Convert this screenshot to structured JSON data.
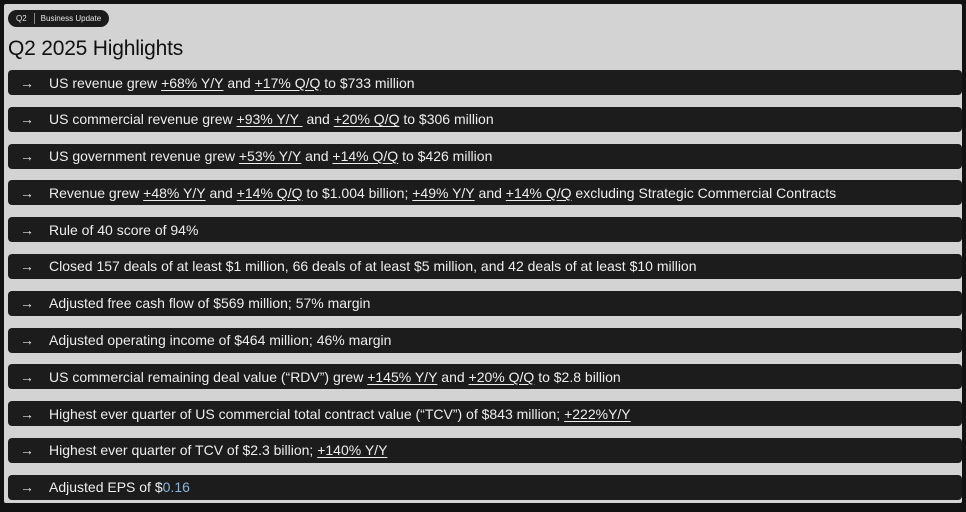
{
  "header": {
    "badge_quarter": "Q2",
    "badge_label": "Business Update",
    "title": "Q2 2025 Highlights"
  },
  "arrow": "→",
  "rows": [
    {
      "p0": "US revenue grew ",
      "l1": "+68% Y/Y",
      "p2": " and ",
      "l3": "+17% Q/Q",
      "p4": " to $733 million"
    },
    {
      "p0": "US commercial revenue grew ",
      "l1": "+93% Y/Y ",
      "p2": " and ",
      "l3": "+20% Q/Q",
      "p4": " to $306 million"
    },
    {
      "p0": "US government revenue grew ",
      "l1": "+53% Y/Y",
      "p2": " and ",
      "l3": "+14% Q/Q",
      "p4": " to $426 million"
    },
    {
      "p0": "Revenue grew ",
      "l1": "+48% Y/Y",
      "p2": " and ",
      "l3": "+14% Q/Q",
      "p4": " to $1.004 billion; ",
      "l5": "+49% Y/Y",
      "p6": " and ",
      "l7": "+14% Q/Q",
      "p8": " excluding Strategic Commercial Contracts"
    },
    {
      "p0": "Rule of 40 score of 94%"
    },
    {
      "p0": "Closed 157 deals of at least $1 million, 66 deals of at least $5 million, and 42 deals of at least $10 million"
    },
    {
      "p0": "Adjusted free cash flow of $569 million; 57% margin"
    },
    {
      "p0": "Adjusted operating income of $464 million; 46% margin"
    },
    {
      "p0": "US commercial remaining deal value (“RDV”) grew ",
      "l1": "+145% Y/Y",
      "p2": " and ",
      "l3": "+20% Q/Q",
      "p4": " to $2.8 billion"
    },
    {
      "p0": "Highest ever quarter of US commercial total contract value (“TCV”) of $843 million; ",
      "l1": "+222%Y/Y"
    },
    {
      "p0": "Highest ever quarter of TCV of $2.3 billion; ",
      "l1": "+140% Y/Y"
    },
    {
      "p0": "Adjusted EPS of $",
      "h1": "0.16"
    }
  ]
}
